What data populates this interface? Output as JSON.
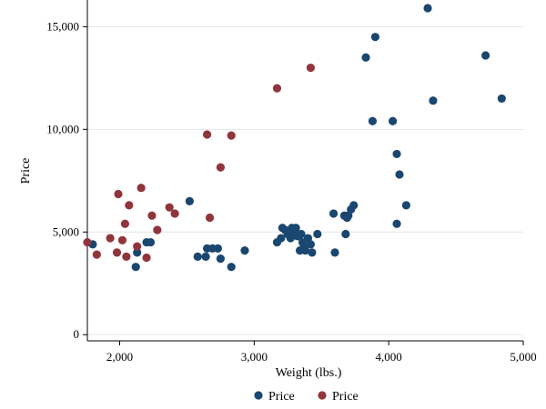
{
  "chart_data": {
    "type": "scatter",
    "title": "",
    "xlabel": "Weight (lbs.)",
    "ylabel": "Price",
    "xlim": [
      1760,
      5000
    ],
    "ylim": [
      -300,
      16300
    ],
    "x_ticks": [
      2000,
      3000,
      4000,
      5000
    ],
    "x_tick_labels": [
      "2,000",
      "3,000",
      "4,000",
      "5,000"
    ],
    "y_ticks": [
      0,
      5000,
      10000,
      15000
    ],
    "y_tick_labels": [
      "0",
      "5,000",
      "10,000",
      "15,000"
    ],
    "grid": "horizontal",
    "legend_position": "bottom-center",
    "series": [
      {
        "name": "Price",
        "color": "#1a476f",
        "points": [
          [
            1800,
            4400
          ],
          [
            2120,
            3300
          ],
          [
            2130,
            4000
          ],
          [
            2200,
            4500
          ],
          [
            2230,
            4500
          ],
          [
            2520,
            6500
          ],
          [
            2580,
            3800
          ],
          [
            2640,
            3800
          ],
          [
            2650,
            4200
          ],
          [
            2690,
            4200
          ],
          [
            2730,
            4200
          ],
          [
            2750,
            3700
          ],
          [
            2830,
            3300
          ],
          [
            2930,
            4100
          ],
          [
            3170,
            4500
          ],
          [
            3200,
            4700
          ],
          [
            3210,
            5200
          ],
          [
            3230,
            5100
          ],
          [
            3250,
            4900
          ],
          [
            3270,
            4700
          ],
          [
            3280,
            5200
          ],
          [
            3290,
            4900
          ],
          [
            3300,
            5100
          ],
          [
            3310,
            5200
          ],
          [
            3320,
            4800
          ],
          [
            3330,
            4800
          ],
          [
            3340,
            4100
          ],
          [
            3350,
            4900
          ],
          [
            3360,
            4500
          ],
          [
            3370,
            4300
          ],
          [
            3380,
            4100
          ],
          [
            3400,
            4700
          ],
          [
            3420,
            4400
          ],
          [
            3430,
            4000
          ],
          [
            3470,
            4900
          ],
          [
            3590,
            5900
          ],
          [
            3600,
            4000
          ],
          [
            3670,
            5800
          ],
          [
            3680,
            4900
          ],
          [
            3690,
            5700
          ],
          [
            3700,
            5800
          ],
          [
            3720,
            6100
          ],
          [
            3740,
            6300
          ],
          [
            3830,
            13500
          ],
          [
            3880,
            10400
          ],
          [
            3900,
            14500
          ],
          [
            4030,
            10400
          ],
          [
            4060,
            8800
          ],
          [
            4060,
            5400
          ],
          [
            4080,
            7800
          ],
          [
            4130,
            6300
          ],
          [
            4290,
            15900
          ],
          [
            4330,
            11400
          ],
          [
            4720,
            13600
          ],
          [
            4840,
            11500
          ]
        ]
      },
      {
        "name": "Price",
        "color": "#90353b",
        "points": [
          [
            1760,
            4500
          ],
          [
            1830,
            3900
          ],
          [
            1930,
            4700
          ],
          [
            1980,
            4000
          ],
          [
            1990,
            6850
          ],
          [
            2020,
            4600
          ],
          [
            2040,
            5400
          ],
          [
            2050,
            3800
          ],
          [
            2070,
            6300
          ],
          [
            2130,
            4300
          ],
          [
            2160,
            7150
          ],
          [
            2200,
            3750
          ],
          [
            2240,
            5800
          ],
          [
            2280,
            5100
          ],
          [
            2370,
            6200
          ],
          [
            2410,
            5900
          ],
          [
            2650,
            9750
          ],
          [
            2670,
            5700
          ],
          [
            2750,
            8150
          ],
          [
            2830,
            9700
          ],
          [
            3170,
            12000
          ],
          [
            3420,
            13000
          ]
        ]
      }
    ]
  }
}
